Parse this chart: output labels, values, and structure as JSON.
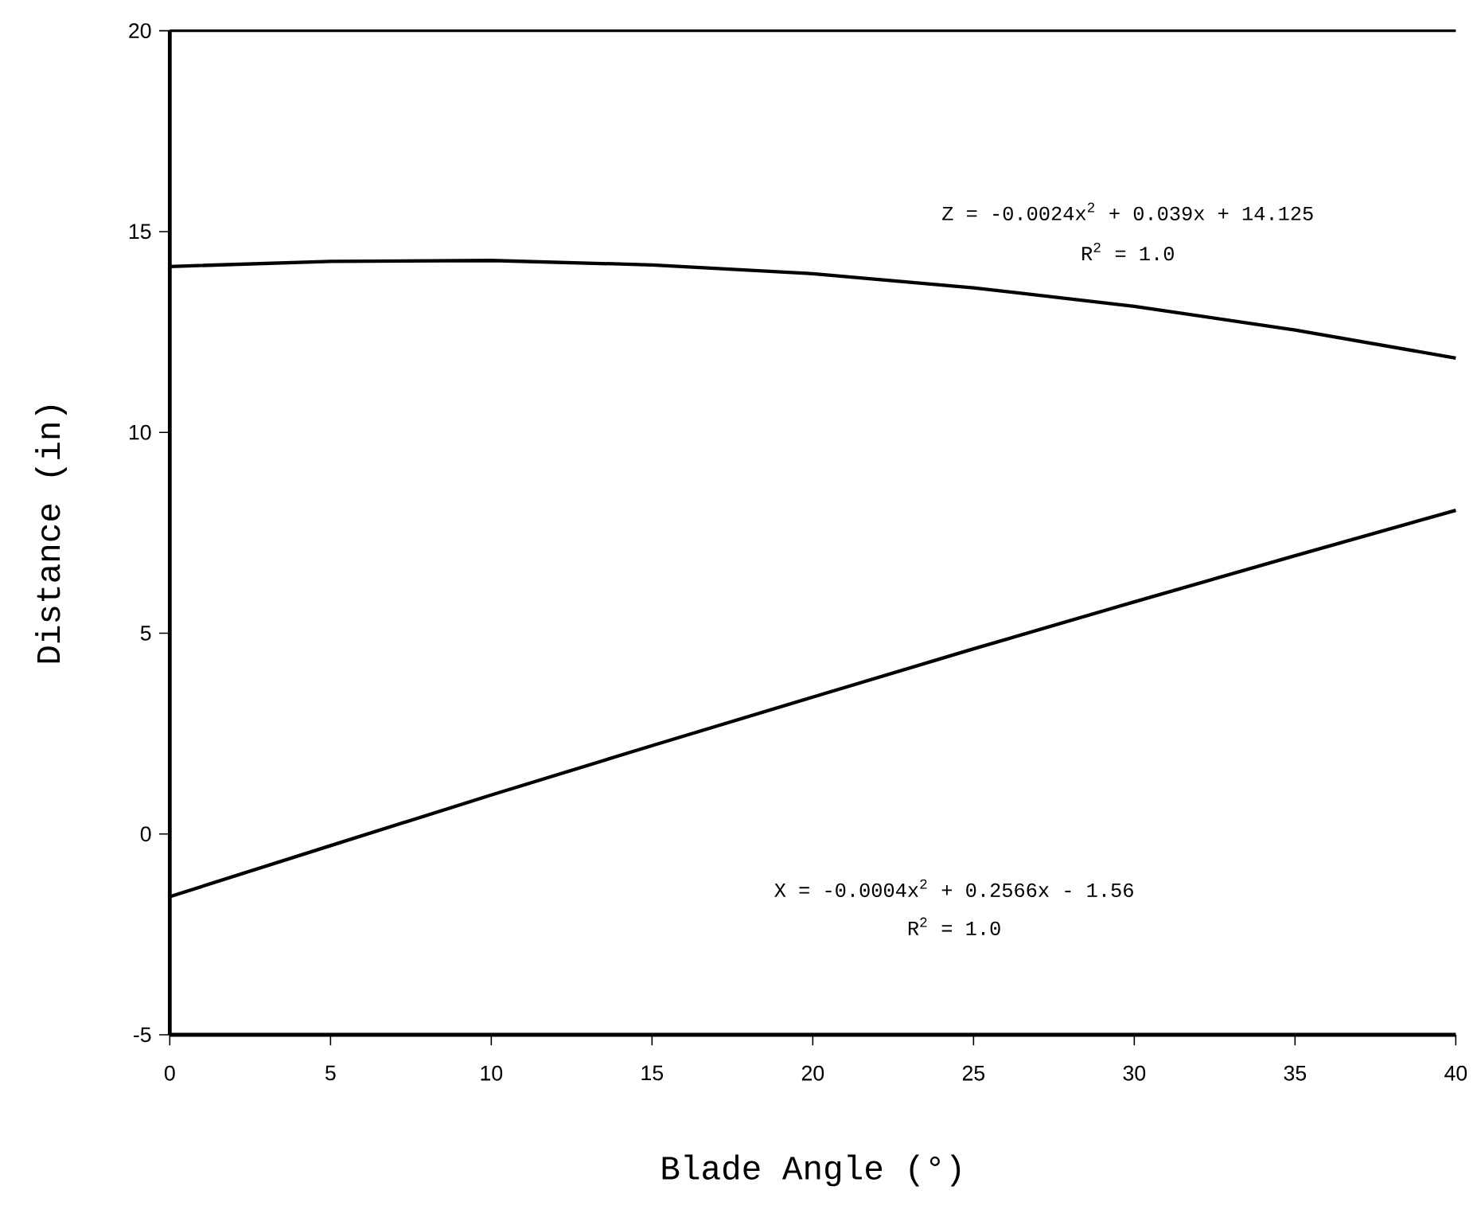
{
  "chart_data": {
    "type": "line",
    "xlabel": "Blade Angle (°)",
    "ylabel": "Distance (in)",
    "x": [
      0,
      5,
      10,
      15,
      20,
      25,
      30,
      35,
      40
    ],
    "series": [
      {
        "color": "#000000",
        "values": [
          14.13,
          14.26,
          14.28,
          14.17,
          13.95,
          13.6,
          13.14,
          12.55,
          11.85
        ]
      },
      {
        "color": "#000000",
        "values": [
          -1.56,
          -0.29,
          0.97,
          2.2,
          3.41,
          4.61,
          5.78,
          6.93,
          8.06
        ]
      }
    ],
    "xlim": [
      0,
      40
    ],
    "ylim": [
      -5,
      20
    ],
    "xticks": [
      0,
      5,
      10,
      15,
      20,
      25,
      30,
      35,
      40
    ],
    "yticks": [
      -5,
      0,
      5,
      10,
      15,
      20
    ],
    "marker": "none",
    "line_style": "solid",
    "grid": false,
    "annotations": [
      "Z = -0.0024x$^{2}$ + 0.039x + 14.125",
      "R$^{2}$ = 1.0",
      "X = -0.0004x$^{2}$ + 0.2566x - 1.56",
      "R$^{2}$ = 1.0"
    ]
  }
}
